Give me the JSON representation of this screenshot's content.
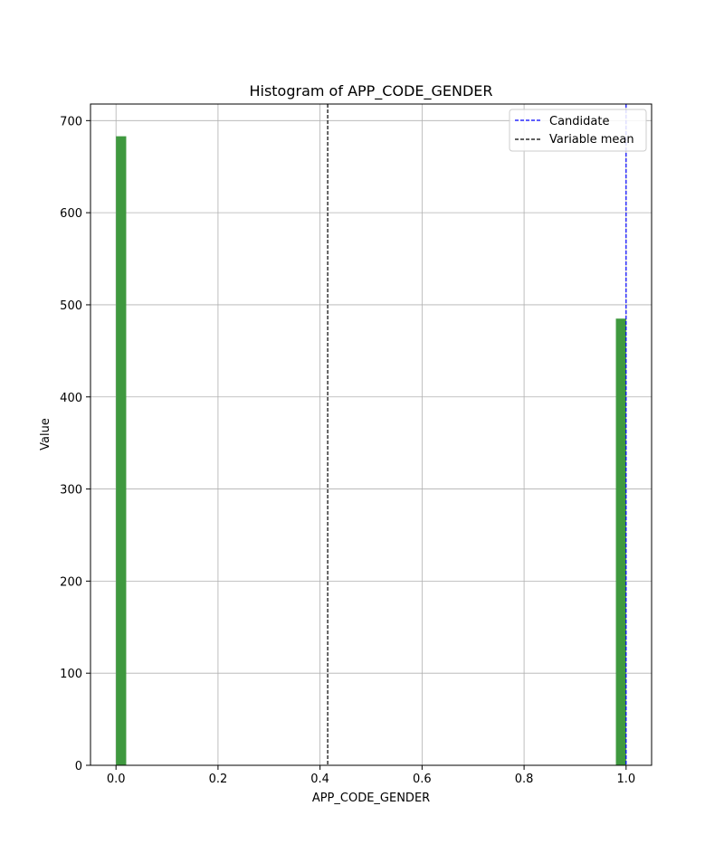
{
  "chart_data": {
    "type": "bar",
    "title": "Histogram of APP_CODE_GENDER",
    "xlabel": "APP_CODE_GENDER",
    "ylabel": "Value",
    "xlim": [
      -0.05,
      1.05
    ],
    "ylim": [
      0,
      718
    ],
    "x_ticks": [
      0.0,
      0.2,
      0.4,
      0.6,
      0.8,
      1.0
    ],
    "x_tick_labels": [
      "0.0",
      "0.2",
      "0.4",
      "0.6",
      "0.8",
      "1.0"
    ],
    "y_ticks": [
      0,
      100,
      200,
      300,
      400,
      500,
      600,
      700
    ],
    "y_tick_labels": [
      "0",
      "100",
      "200",
      "300",
      "400",
      "500",
      "600",
      "700"
    ],
    "grid": true,
    "bins": [
      {
        "start": 0.0,
        "end": 0.02,
        "count": 683
      },
      {
        "start": 0.98,
        "end": 1.0,
        "count": 485
      }
    ],
    "reference_lines": [
      {
        "name": "Candidate",
        "x": 1.0,
        "color": "#0000ff"
      },
      {
        "name": "Variable mean",
        "x": 0.415,
        "color": "#000000"
      }
    ],
    "legend": {
      "position": "top-right",
      "entries": [
        "Candidate",
        "Variable mean"
      ]
    },
    "colors": {
      "bar": "#3f993f",
      "grid": "#b0b0b0",
      "candidate": "#0000ff",
      "mean": "#000000"
    }
  }
}
